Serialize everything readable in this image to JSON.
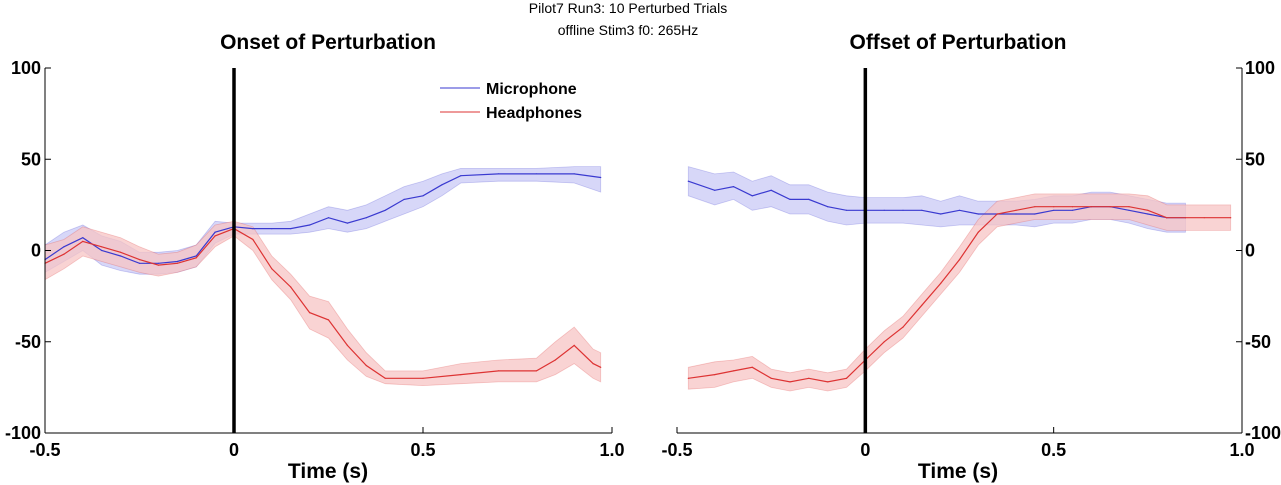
{
  "figure": {
    "suptitle_line1": "Pilot7 Run3: 10 Perturbed Trials",
    "suptitle_line2": "offline Stim3   f0: 265Hz"
  },
  "colors": {
    "microphone": "#3a3ad0",
    "headphones": "#dd3333",
    "microphone_band": "#c9c9f6",
    "headphones_band": "#f7c4c4"
  },
  "chart_data": [
    {
      "type": "line",
      "title": "Onset of Perturbation",
      "xlabel": "Time (s)",
      "ylabel": "",
      "xlim": [
        -0.5,
        1.0
      ],
      "ylim": [
        -100,
        100
      ],
      "xticks": [
        -0.5,
        0,
        0.5,
        1.0
      ],
      "xtick_labels": [
        "-0.5",
        "0",
        "0.5",
        "1.0"
      ],
      "yticks": [
        -100,
        -50,
        0,
        50,
        100
      ],
      "ytick_labels": [
        "-100",
        "-50",
        "0",
        "50",
        "100"
      ],
      "y_axis_side": "left",
      "vline_x": 0,
      "legend": {
        "position": "top-right",
        "entries": [
          "Microphone",
          "Headphones"
        ]
      },
      "series": [
        {
          "name": "Microphone",
          "x": [
            -0.5,
            -0.45,
            -0.4,
            -0.35,
            -0.3,
            -0.25,
            -0.2,
            -0.15,
            -0.1,
            -0.05,
            0,
            0.05,
            0.1,
            0.15,
            0.2,
            0.25,
            0.3,
            0.35,
            0.4,
            0.45,
            0.5,
            0.55,
            0.6,
            0.7,
            0.8,
            0.9,
            0.97
          ],
          "y": [
            -5,
            2,
            7,
            0,
            -3,
            -7,
            -7,
            -6,
            -3,
            10,
            13,
            12,
            12,
            12,
            14,
            18,
            15,
            18,
            22,
            28,
            30,
            36,
            41,
            42,
            42,
            42,
            40
          ],
          "lower": [
            -12,
            -6,
            0,
            -8,
            -11,
            -13,
            -13,
            -12,
            -9,
            4,
            9,
            9,
            9,
            9,
            10,
            12,
            10,
            12,
            16,
            20,
            24,
            30,
            37,
            38,
            38,
            37,
            32
          ],
          "upper": [
            3,
            10,
            14,
            8,
            5,
            -1,
            -1,
            0,
            3,
            16,
            15,
            15,
            15,
            16,
            20,
            24,
            22,
            25,
            30,
            35,
            38,
            42,
            45,
            45,
            45,
            46,
            46
          ]
        },
        {
          "name": "Headphones",
          "x": [
            -0.5,
            -0.45,
            -0.4,
            -0.35,
            -0.3,
            -0.25,
            -0.2,
            -0.15,
            -0.1,
            -0.05,
            0,
            0.05,
            0.1,
            0.15,
            0.2,
            0.25,
            0.3,
            0.35,
            0.4,
            0.5,
            0.6,
            0.7,
            0.8,
            0.85,
            0.9,
            0.95,
            0.97
          ],
          "y": [
            -7,
            -2,
            5,
            2,
            -1,
            -5,
            -8,
            -7,
            -4,
            8,
            12,
            6,
            -10,
            -20,
            -34,
            -38,
            -52,
            -63,
            -70,
            -70,
            -68,
            -66,
            -66,
            -60,
            -52,
            -62,
            -64
          ],
          "lower": [
            -16,
            -10,
            -3,
            -6,
            -9,
            -12,
            -14,
            -12,
            -9,
            2,
            8,
            0,
            -16,
            -27,
            -43,
            -48,
            -60,
            -69,
            -73,
            -74,
            -73,
            -72,
            -72,
            -68,
            -62,
            -70,
            -72
          ],
          "upper": [
            3,
            6,
            13,
            10,
            7,
            2,
            -2,
            -1,
            3,
            14,
            16,
            13,
            -3,
            -13,
            -25,
            -28,
            -43,
            -56,
            -66,
            -66,
            -62,
            -60,
            -59,
            -50,
            -42,
            -54,
            -56
          ]
        }
      ]
    },
    {
      "type": "line",
      "title": "Offset of Perturbation",
      "xlabel": "Time (s)",
      "ylabel": "",
      "xlim": [
        -0.5,
        1.0
      ],
      "ylim": [
        -100,
        100
      ],
      "xticks": [
        -0.5,
        0,
        0.5,
        1.0
      ],
      "xtick_labels": [
        "-0.5",
        "0",
        "0.5",
        "1.0"
      ],
      "yticks": [
        -100,
        -50,
        0,
        50,
        100
      ],
      "ytick_labels": [
        "-100",
        "-50",
        "0",
        "50",
        "100"
      ],
      "y_axis_side": "right",
      "vline_x": 0,
      "series": [
        {
          "name": "Microphone",
          "x": [
            -0.47,
            -0.4,
            -0.35,
            -0.3,
            -0.25,
            -0.2,
            -0.15,
            -0.1,
            -0.05,
            0,
            0.05,
            0.1,
            0.15,
            0.2,
            0.25,
            0.3,
            0.35,
            0.4,
            0.45,
            0.5,
            0.55,
            0.6,
            0.65,
            0.7,
            0.75,
            0.8,
            0.85
          ],
          "y": [
            38,
            33,
            35,
            30,
            33,
            28,
            28,
            24,
            22,
            22,
            22,
            22,
            22,
            20,
            22,
            20,
            20,
            20,
            20,
            22,
            22,
            24,
            24,
            22,
            20,
            18,
            18
          ],
          "lower": [
            30,
            25,
            28,
            22,
            24,
            20,
            20,
            16,
            14,
            15,
            15,
            15,
            14,
            13,
            14,
            14,
            14,
            14,
            13,
            15,
            15,
            17,
            17,
            15,
            12,
            10,
            10
          ],
          "upper": [
            46,
            42,
            43,
            38,
            41,
            36,
            36,
            32,
            30,
            29,
            29,
            29,
            30,
            27,
            30,
            27,
            27,
            27,
            28,
            30,
            30,
            32,
            32,
            30,
            28,
            26,
            26
          ]
        },
        {
          "name": "Headphones",
          "x": [
            -0.47,
            -0.4,
            -0.35,
            -0.3,
            -0.25,
            -0.2,
            -0.15,
            -0.1,
            -0.05,
            0,
            0.05,
            0.1,
            0.15,
            0.2,
            0.25,
            0.3,
            0.35,
            0.4,
            0.45,
            0.5,
            0.55,
            0.6,
            0.65,
            0.7,
            0.75,
            0.8,
            0.85,
            0.9,
            0.97
          ],
          "y": [
            -70,
            -68,
            -66,
            -64,
            -70,
            -72,
            -70,
            -72,
            -70,
            -60,
            -50,
            -42,
            -30,
            -18,
            -5,
            10,
            20,
            22,
            24,
            24,
            24,
            24,
            24,
            24,
            22,
            18,
            18,
            18,
            18
          ],
          "lower": [
            -76,
            -75,
            -72,
            -70,
            -75,
            -77,
            -75,
            -77,
            -75,
            -66,
            -56,
            -48,
            -36,
            -24,
            -12,
            3,
            13,
            15,
            17,
            17,
            17,
            17,
            17,
            17,
            14,
            11,
            11,
            11,
            11
          ],
          "upper": [
            -64,
            -61,
            -60,
            -58,
            -65,
            -67,
            -65,
            -67,
            -65,
            -54,
            -44,
            -36,
            -24,
            -12,
            2,
            17,
            27,
            29,
            31,
            31,
            31,
            31,
            31,
            31,
            30,
            25,
            25,
            25,
            25
          ]
        }
      ]
    }
  ]
}
